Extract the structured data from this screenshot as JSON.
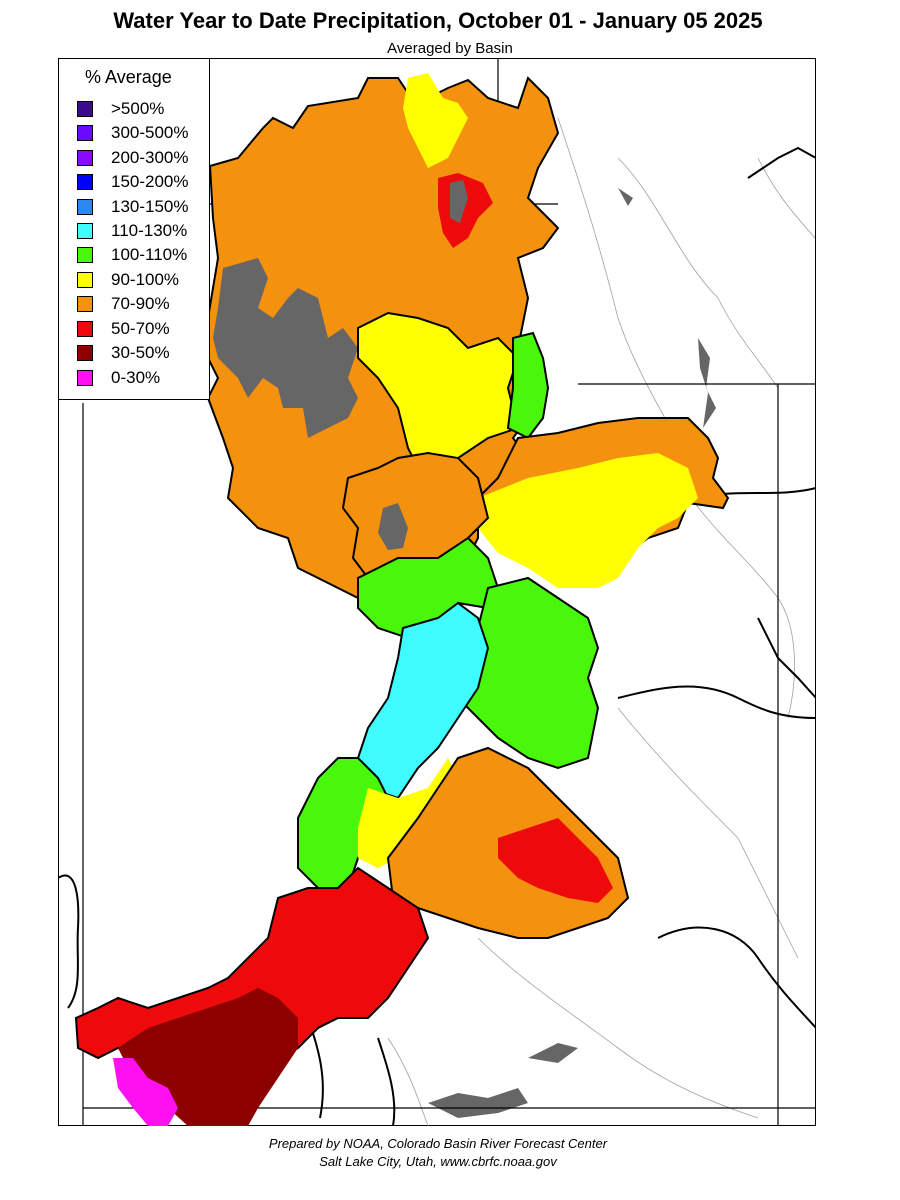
{
  "header": {
    "title": "Water Year to Date Precipitation, October 01  - January 05 2025",
    "subtitle": "Averaged by Basin"
  },
  "legend": {
    "title": "% Average",
    "items": [
      {
        "label": ">500%",
        "color": "#3c0a8c"
      },
      {
        "label": "300-500%",
        "color": "#6a0aff"
      },
      {
        "label": "200-300%",
        "color": "#8a0aff"
      },
      {
        "label": "150-200%",
        "color": "#0000ff"
      },
      {
        "label": "130-150%",
        "color": "#2a88f0"
      },
      {
        "label": "110-130%",
        "color": "#3ffdff"
      },
      {
        "label": "100-110%",
        "color": "#48f70a"
      },
      {
        "label": "90-100%",
        "color": "#ffff00"
      },
      {
        "label": "70-90%",
        "color": "#f4910e"
      },
      {
        "label": "50-70%",
        "color": "#ee0a0a"
      },
      {
        "label": "30-50%",
        "color": "#8c0000"
      },
      {
        "label": "0-30%",
        "color": "#ff10f0"
      }
    ]
  },
  "colors": {
    "no_data_gray": "#666666",
    "state_lines": "#000000",
    "rivers": "#9a9a9a"
  },
  "footer": {
    "line1": "Prepared by NOAA, Colorado Basin River Forecast Center",
    "line2": "Salt Lake City, Utah, www.cbrfc.noaa.gov"
  }
}
